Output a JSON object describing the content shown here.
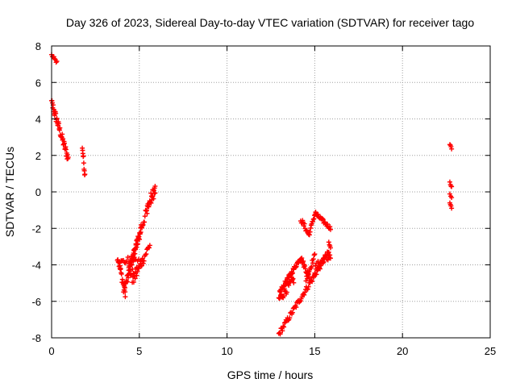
{
  "chart_data": {
    "type": "scatter",
    "title": "Day 326 of 2023, Sidereal Day-to-day VTEC variation (SDTVAR) for receiver tago",
    "xlabel": "GPS time / hours",
    "ylabel": "SDTVAR / TECUs",
    "xlim": [
      0,
      25
    ],
    "ylim": [
      -8,
      8
    ],
    "x_ticks": [
      0,
      5,
      10,
      15,
      20,
      25
    ],
    "y_ticks": [
      -8,
      -6,
      -4,
      -2,
      0,
      2,
      4,
      6,
      8
    ],
    "x_tick_labels": [
      "0",
      "5",
      "10",
      "15",
      "20",
      "25"
    ],
    "y_tick_labels": [
      "-8",
      "-6",
      "-4",
      "-2",
      "0",
      "2",
      "4",
      "6",
      "8"
    ],
    "grid": true,
    "marker": "+",
    "color": "#ff0000",
    "series": [
      {
        "name": "SDTVAR",
        "segments": [
          {
            "x0": 0.0,
            "x1": 0.3,
            "y0": 7.5,
            "y1": 7.1,
            "n": 8,
            "jitter": 0.08
          },
          {
            "x0": 0.0,
            "x1": 0.95,
            "y0": 4.9,
            "y1": 1.8,
            "n": 45,
            "jitter": 0.25
          },
          {
            "x0": 1.75,
            "x1": 1.9,
            "y0": 2.5,
            "y1": 0.9,
            "n": 10,
            "jitter": 0.2
          },
          {
            "x0": 3.75,
            "x1": 4.2,
            "y0": -3.5,
            "y1": -5.6,
            "n": 20,
            "jitter": 0.25
          },
          {
            "x0": 4.1,
            "x1": 5.1,
            "y0": -5.5,
            "y1": -2.0,
            "n": 35,
            "jitter": 0.3
          },
          {
            "x0": 4.4,
            "x1": 5.9,
            "y0": -4.3,
            "y1": 0.5,
            "n": 45,
            "jitter": 0.25
          },
          {
            "x0": 3.9,
            "x1": 4.8,
            "y0": -3.9,
            "y1": -3.6,
            "n": 15,
            "jitter": 0.2
          },
          {
            "x0": 4.6,
            "x1": 5.6,
            "y0": -5.0,
            "y1": -2.9,
            "n": 25,
            "jitter": 0.25
          },
          {
            "x0": 4.2,
            "x1": 5.2,
            "y0": -5.0,
            "y1": -3.6,
            "n": 18,
            "jitter": 0.25
          },
          {
            "x0": 5.4,
            "x1": 5.9,
            "y0": -1.2,
            "y1": -0.1,
            "n": 12,
            "jitter": 0.2
          },
          {
            "x0": 12.95,
            "x1": 15.8,
            "y0": -7.8,
            "y1": -3.3,
            "n": 70,
            "jitter": 0.15
          },
          {
            "x0": 12.95,
            "x1": 13.8,
            "y0": -5.9,
            "y1": -4.8,
            "n": 25,
            "jitter": 0.25
          },
          {
            "x0": 13.0,
            "x1": 14.2,
            "y0": -5.5,
            "y1": -3.6,
            "n": 40,
            "jitter": 0.12
          },
          {
            "x0": 14.2,
            "x1": 14.7,
            "y0": -3.6,
            "y1": -4.7,
            "n": 18,
            "jitter": 0.15
          },
          {
            "x0": 14.5,
            "x1": 15.0,
            "y0": -4.8,
            "y1": -3.5,
            "n": 15,
            "jitter": 0.15
          },
          {
            "x0": 14.2,
            "x1": 14.7,
            "y0": -1.5,
            "y1": -2.4,
            "n": 15,
            "jitter": 0.15
          },
          {
            "x0": 14.7,
            "x1": 15.05,
            "y0": -2.2,
            "y1": -1.1,
            "n": 12,
            "jitter": 0.1
          },
          {
            "x0": 15.05,
            "x1": 15.9,
            "y0": -1.2,
            "y1": -2.0,
            "n": 25,
            "jitter": 0.1
          },
          {
            "x0": 15.0,
            "x1": 15.9,
            "y0": -4.2,
            "y1": -3.4,
            "n": 25,
            "jitter": 0.25
          },
          {
            "x0": 15.8,
            "x1": 15.9,
            "y0": -2.8,
            "y1": -3.1,
            "n": 4,
            "jitter": 0.05
          },
          {
            "x0": 22.7,
            "x1": 22.8,
            "y0": 2.6,
            "y1": 2.4,
            "n": 4,
            "jitter": 0.05
          },
          {
            "x0": 22.7,
            "x1": 22.8,
            "y0": 0.5,
            "y1": 0.3,
            "n": 4,
            "jitter": 0.05
          },
          {
            "x0": 22.7,
            "x1": 22.8,
            "y0": -0.1,
            "y1": -0.3,
            "n": 3,
            "jitter": 0.05
          },
          {
            "x0": 22.7,
            "x1": 22.8,
            "y0": -0.6,
            "y1": -0.9,
            "n": 4,
            "jitter": 0.05
          }
        ]
      }
    ]
  }
}
